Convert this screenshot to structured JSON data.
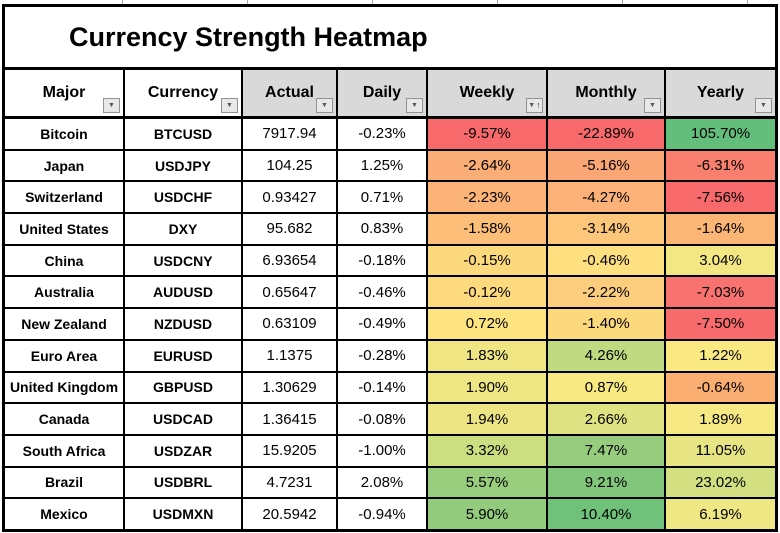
{
  "title": "Currency Strength Heatmap",
  "table": {
    "columns": [
      {
        "label": "Major",
        "header_bg": "#ffffff",
        "filter_icon": "filter-dropdown",
        "sorted": ""
      },
      {
        "label": "Currency",
        "header_bg": "#ffffff",
        "filter_icon": "filter-dropdown",
        "sorted": ""
      },
      {
        "label": "Actual",
        "header_bg": "#d9d9d9",
        "filter_icon": "filter-dropdown",
        "sorted": ""
      },
      {
        "label": "Daily",
        "header_bg": "#d9d9d9",
        "filter_icon": "filter-dropdown",
        "sorted": ""
      },
      {
        "label": "Weekly",
        "header_bg": "#d9d9d9",
        "filter_icon": "filter-dropdown-sorted",
        "sorted": "asc"
      },
      {
        "label": "Monthly",
        "header_bg": "#d9d9d9",
        "filter_icon": "filter-dropdown",
        "sorted": ""
      },
      {
        "label": "Yearly",
        "header_bg": "#d9d9d9",
        "filter_icon": "filter-dropdown",
        "sorted": ""
      }
    ],
    "rows": [
      {
        "major": "Bitcoin",
        "currency": "BTCUSD",
        "actual": "7917.94",
        "daily": "-0.23%",
        "weekly": {
          "text": "-9.57%",
          "bg": "#F8696B"
        },
        "monthly": {
          "text": "-22.89%",
          "bg": "#F8696B"
        },
        "yearly": {
          "text": "105.70%",
          "bg": "#63BE7B"
        }
      },
      {
        "major": "Japan",
        "currency": "USDJPY",
        "actual": "104.25",
        "daily": "1.25%",
        "weekly": {
          "text": "-2.64%",
          "bg": "#FAAD76"
        },
        "monthly": {
          "text": "-5.16%",
          "bg": "#FAA675"
        },
        "yearly": {
          "text": "-6.31%",
          "bg": "#F9806F"
        }
      },
      {
        "major": "Switzerland",
        "currency": "USDCHF",
        "actual": "0.93427",
        "daily": "0.71%",
        "weekly": {
          "text": "-2.23%",
          "bg": "#FBB377"
        },
        "monthly": {
          "text": "-4.27%",
          "bg": "#FBB177"
        },
        "yearly": {
          "text": "-7.56%",
          "bg": "#F8696B"
        }
      },
      {
        "major": "United States",
        "currency": "DXY",
        "actual": "95.682",
        "daily": "0.83%",
        "weekly": {
          "text": "-1.58%",
          "bg": "#FCBE79"
        },
        "monthly": {
          "text": "-3.14%",
          "bg": "#FCC67B"
        },
        "yearly": {
          "text": "-1.64%",
          "bg": "#FBB575"
        }
      },
      {
        "major": "China",
        "currency": "USDCNY",
        "actual": "6.93654",
        "daily": "-0.18%",
        "weekly": {
          "text": "-0.15%",
          "bg": "#FDD97E"
        },
        "monthly": {
          "text": "-0.46%",
          "bg": "#FEE081"
        },
        "yearly": {
          "text": "3.04%",
          "bg": "#F2E782"
        }
      },
      {
        "major": "Australia",
        "currency": "AUDUSD",
        "actual": "0.65647",
        "daily": "-0.46%",
        "weekly": {
          "text": "-0.12%",
          "bg": "#FDDA7E"
        },
        "monthly": {
          "text": "-2.22%",
          "bg": "#FCCD7C"
        },
        "yearly": {
          "text": "-7.03%",
          "bg": "#F87370"
        }
      },
      {
        "major": "New Zealand",
        "currency": "NZDUSD",
        "actual": "0.63109",
        "daily": "-0.49%",
        "weekly": {
          "text": "0.72%",
          "bg": "#FDE481"
        },
        "monthly": {
          "text": "-1.40%",
          "bg": "#FDD97E"
        },
        "yearly": {
          "text": "-7.50%",
          "bg": "#F86B6C"
        }
      },
      {
        "major": "Euro Area",
        "currency": "EURUSD",
        "actual": "1.1375",
        "daily": "-0.28%",
        "weekly": {
          "text": "1.83%",
          "bg": "#EFE683"
        },
        "monthly": {
          "text": "4.26%",
          "bg": "#BFDA80"
        },
        "yearly": {
          "text": "1.22%",
          "bg": "#FAE883"
        }
      },
      {
        "major": "United Kingdom",
        "currency": "GBPUSD",
        "actual": "1.30629",
        "daily": "-0.14%",
        "weekly": {
          "text": "1.90%",
          "bg": "#EEE683"
        },
        "monthly": {
          "text": "0.87%",
          "bg": "#F9E983"
        },
        "yearly": {
          "text": "-0.64%",
          "bg": "#FBAE71"
        }
      },
      {
        "major": "Canada",
        "currency": "USDCAD",
        "actual": "1.36415",
        "daily": "-0.08%",
        "weekly": {
          "text": "1.94%",
          "bg": "#EDE583"
        },
        "monthly": {
          "text": "2.66%",
          "bg": "#DFE282"
        },
        "yearly": {
          "text": "1.89%",
          "bg": "#F6E883"
        }
      },
      {
        "major": "South Africa",
        "currency": "USDZAR",
        "actual": "15.9205",
        "daily": "-1.00%",
        "weekly": {
          "text": "3.32%",
          "bg": "#CDDE81"
        },
        "monthly": {
          "text": "7.47%",
          "bg": "#97CC7E"
        },
        "yearly": {
          "text": "11.05%",
          "bg": "#E7E483"
        }
      },
      {
        "major": "Brazil",
        "currency": "USDBRL",
        "actual": "4.7231",
        "daily": "2.08%",
        "weekly": {
          "text": "5.57%",
          "bg": "#98CD7E"
        },
        "monthly": {
          "text": "9.21%",
          "bg": "#82C67C"
        },
        "yearly": {
          "text": "23.02%",
          "bg": "#D3E081"
        }
      },
      {
        "major": "Mexico",
        "currency": "USDMXN",
        "actual": "20.5942",
        "daily": "-0.94%",
        "weekly": {
          "text": "5.90%",
          "bg": "#93CB7D"
        },
        "monthly": {
          "text": "10.40%",
          "bg": "#70C27B"
        },
        "yearly": {
          "text": "6.19%",
          "bg": "#EFE684"
        }
      }
    ]
  },
  "icons": {
    "filter_dropdown": "▼",
    "sort_ascending": "↑"
  },
  "colors": {
    "border": "#000000",
    "header_gray": "#d9d9d9",
    "scale_min_red": "#F8696B",
    "scale_mid_yellow": "#FFEB84",
    "scale_max_green": "#63BE7B"
  }
}
